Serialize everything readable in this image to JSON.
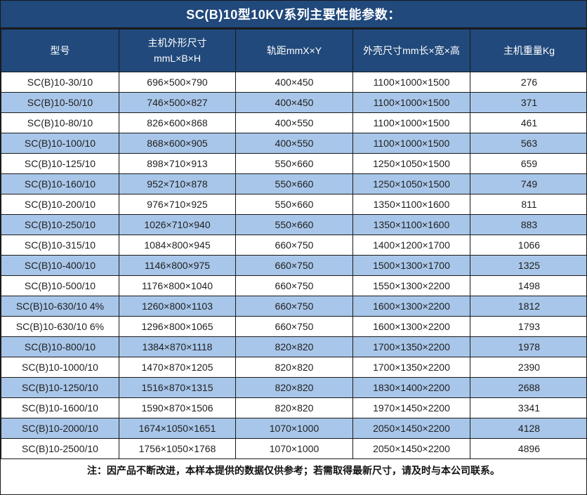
{
  "title": "SC(B)10型10KV系列主要性能参数：",
  "colors": {
    "header_bg": "#21497B",
    "row_alt_bg": "#A8C6E9",
    "border": "#1A1A1A",
    "header_text": "#FFFFFF",
    "body_text": "#1F1F1F"
  },
  "table": {
    "headers": {
      "model": "型号",
      "dims_line1": "主机外形尺寸",
      "dims_line2": "mmL×B×H",
      "rail": "轨距mmX×Y",
      "shell": "外壳尺寸mm长×宽×高",
      "weight": "主机重量Kg"
    },
    "rows": [
      {
        "model": "SC(B)10-30/10",
        "dims": "696×500×790",
        "rail": "400×450",
        "shell": "1100×1000×1500",
        "weight": "276"
      },
      {
        "model": "SC(B)10-50/10",
        "dims": "746×500×827",
        "rail": "400×450",
        "shell": "1100×1000×1500",
        "weight": "371"
      },
      {
        "model": "SC(B)10-80/10",
        "dims": "826×600×868",
        "rail": "400×550",
        "shell": "1100×1000×1500",
        "weight": "461"
      },
      {
        "model": "SC(B)10-100/10",
        "dims": "868×600×905",
        "rail": "400×550",
        "shell": "1100×1000×1500",
        "weight": "563"
      },
      {
        "model": "SC(B)10-125/10",
        "dims": "898×710×913",
        "rail": "550×660",
        "shell": "1250×1050×1500",
        "weight": "659"
      },
      {
        "model": "SC(B)10-160/10",
        "dims": "952×710×878",
        "rail": "550×660",
        "shell": "1250×1050×1500",
        "weight": "749"
      },
      {
        "model": "SC(B)10-200/10",
        "dims": "976×710×925",
        "rail": "550×660",
        "shell": "1350×1100×1600",
        "weight": "811"
      },
      {
        "model": "SC(B)10-250/10",
        "dims": "1026×710×940",
        "rail": "550×660",
        "shell": "1350×1100×1600",
        "weight": "883"
      },
      {
        "model": "SC(B)10-315/10",
        "dims": "1084×800×945",
        "rail": "660×750",
        "shell": "1400×1200×1700",
        "weight": "1066"
      },
      {
        "model": "SC(B)10-400/10",
        "dims": "1146×800×975",
        "rail": "660×750",
        "shell": "1500×1300×1700",
        "weight": "1325"
      },
      {
        "model": "SC(B)10-500/10",
        "dims": "1176×800×1040",
        "rail": "660×750",
        "shell": "1550×1300×2200",
        "weight": "1498"
      },
      {
        "model": "SC(B)10-630/10 4%",
        "dims": "1260×800×1103",
        "rail": "660×750",
        "shell": "1600×1300×2200",
        "weight": "1812"
      },
      {
        "model": "SC(B)10-630/10 6%",
        "dims": "1296×800×1065",
        "rail": "660×750",
        "shell": "1600×1300×2200",
        "weight": "1793"
      },
      {
        "model": "SC(B)10-800/10",
        "dims": "1384×870×1118",
        "rail": "820×820",
        "shell": "1700×1350×2200",
        "weight": "1978"
      },
      {
        "model": "SC(B)10-1000/10",
        "dims": "1470×870×1205",
        "rail": "820×820",
        "shell": "1700×1350×2200",
        "weight": "2390"
      },
      {
        "model": "SC(B)10-1250/10",
        "dims": "1516×870×1315",
        "rail": "820×820",
        "shell": "1830×1400×2200",
        "weight": "2688"
      },
      {
        "model": "SC(B)10-1600/10",
        "dims": "1590×870×1506",
        "rail": "820×820",
        "shell": "1970×1450×2200",
        "weight": "3341"
      },
      {
        "model": "SC(B)10-2000/10",
        "dims": "1674×1050×1651",
        "rail": "1070×1000",
        "shell": "2050×1450×2200",
        "weight": "4128"
      },
      {
        "model": "SC(B)10-2500/10",
        "dims": "1756×1050×1768",
        "rail": "1070×1000",
        "shell": "2050×1450×2200",
        "weight": "4896"
      }
    ]
  },
  "footer_note": "注：因产品不断改进，本样本提供的数据仅供参考；若需取得最新尺寸，请及时与本公司联系。"
}
